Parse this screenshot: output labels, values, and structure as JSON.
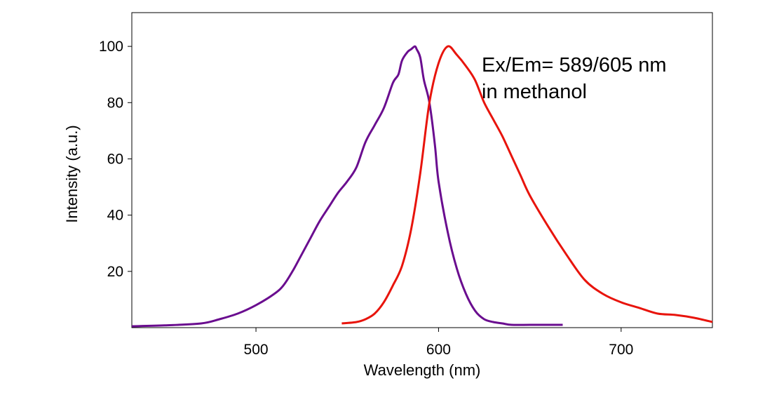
{
  "chart_data": {
    "type": "line",
    "title": "",
    "xlabel": "Wavelength (nm)",
    "ylabel": "Intensity (a.u.)",
    "xlim": [
      432,
      750
    ],
    "ylim": [
      0,
      112
    ],
    "xticks": [
      500,
      600,
      700
    ],
    "yticks": [
      20,
      40,
      60,
      80,
      100
    ],
    "grid": false,
    "annotation": [
      "Ex/Em= 589/605 nm",
      "in methanol"
    ],
    "series": [
      {
        "color": "#6a0d8f",
        "x": [
          432,
          450,
          470,
          480,
          490,
          500,
          510,
          515,
          520,
          525,
          530,
          535,
          540,
          545,
          550,
          555,
          560,
          565,
          570,
          575,
          578,
          580,
          583,
          585,
          587,
          588,
          590,
          592,
          595,
          598,
          600,
          605,
          610,
          615,
          620,
          625,
          630,
          635,
          640,
          650,
          660,
          668
        ],
        "y": [
          0.5,
          0.8,
          1.5,
          3,
          5,
          8,
          12,
          15,
          20,
          26,
          32,
          38,
          43,
          48,
          52,
          57,
          66,
          72,
          78,
          87,
          90,
          95,
          98,
          99,
          100,
          99,
          96,
          88,
          80,
          65,
          52,
          34,
          21,
          12,
          6,
          3,
          2,
          1.5,
          1,
          1,
          1,
          1
        ]
      },
      {
        "color": "#e8140c",
        "x": [
          547,
          555,
          560,
          565,
          570,
          575,
          580,
          585,
          590,
          595,
          600,
          605,
          610,
          615,
          620,
          625,
          630,
          635,
          640,
          645,
          650,
          660,
          670,
          680,
          690,
          700,
          710,
          720,
          730,
          740,
          750
        ],
        "y": [
          1.5,
          2,
          3,
          5,
          9,
          15,
          22,
          35,
          55,
          80,
          94,
          100,
          97,
          93,
          88,
          80,
          74,
          68,
          61,
          54,
          47,
          36,
          26,
          17,
          12,
          9,
          7,
          5,
          4.5,
          3.5,
          2
        ]
      }
    ]
  }
}
